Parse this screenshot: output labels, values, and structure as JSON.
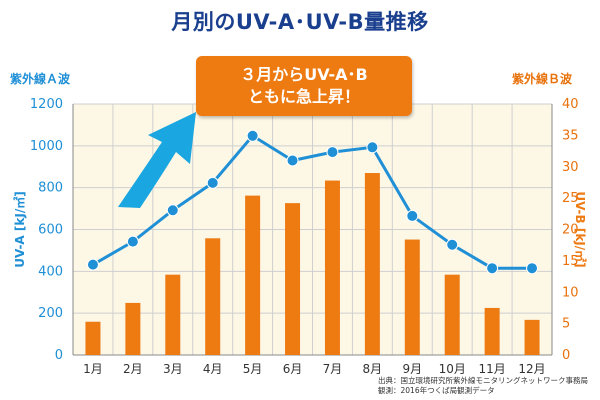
{
  "title": "月別のUV-A･UV-B量推移",
  "callout": {
    "line1": "３月からUV-A･B",
    "line2": "ともに急上昇！"
  },
  "source": {
    "line1": "出典：国立環境研究所紫外線モニタリングネットワーク事務局",
    "line2": "観測：2016年つくば局観測データ"
  },
  "colors": {
    "uva": "#1f8fd6",
    "uvb": "#ee7a12",
    "grid": "#cfcfcf",
    "plot_bg": "#fdf7e6",
    "arrow": "#1aa6e0"
  },
  "chart_data": {
    "type": "bar+line",
    "categories": [
      "1月",
      "2月",
      "3月",
      "4月",
      "5月",
      "6月",
      "7月",
      "8月",
      "9月",
      "10月",
      "11月",
      "12月"
    ],
    "series": [
      {
        "name": "紫外線B波",
        "type": "bar",
        "axis": "right",
        "unit": "[kJ/㎡]",
        "values": [
          5.3,
          8.3,
          12.8,
          18.6,
          25.4,
          24.2,
          27.8,
          29.0,
          18.4,
          12.8,
          7.5,
          5.6
        ]
      },
      {
        "name": "紫外線A波",
        "type": "line",
        "axis": "left",
        "unit": "[kJ/㎡]",
        "values": [
          432,
          542,
          692,
          823,
          1048,
          930,
          970,
          993,
          665,
          527,
          415,
          415
        ]
      }
    ],
    "y_left": {
      "label": "UV-A [kJ/㎡]",
      "header": "紫外線Ａ波",
      "ticks": [
        "0",
        "200",
        "400",
        "600",
        "800",
        "1000",
        "1200"
      ],
      "ylim": [
        0,
        1200
      ]
    },
    "y_right": {
      "label": "UV-B [kJ/㎡]",
      "header": "紫外線Ｂ波",
      "ticks": [
        "0",
        "5",
        "10",
        "15",
        "20",
        "25",
        "30",
        "35",
        "40"
      ],
      "ylim": [
        0,
        40
      ]
    },
    "grid": true,
    "callout_arrow": "up-right"
  }
}
